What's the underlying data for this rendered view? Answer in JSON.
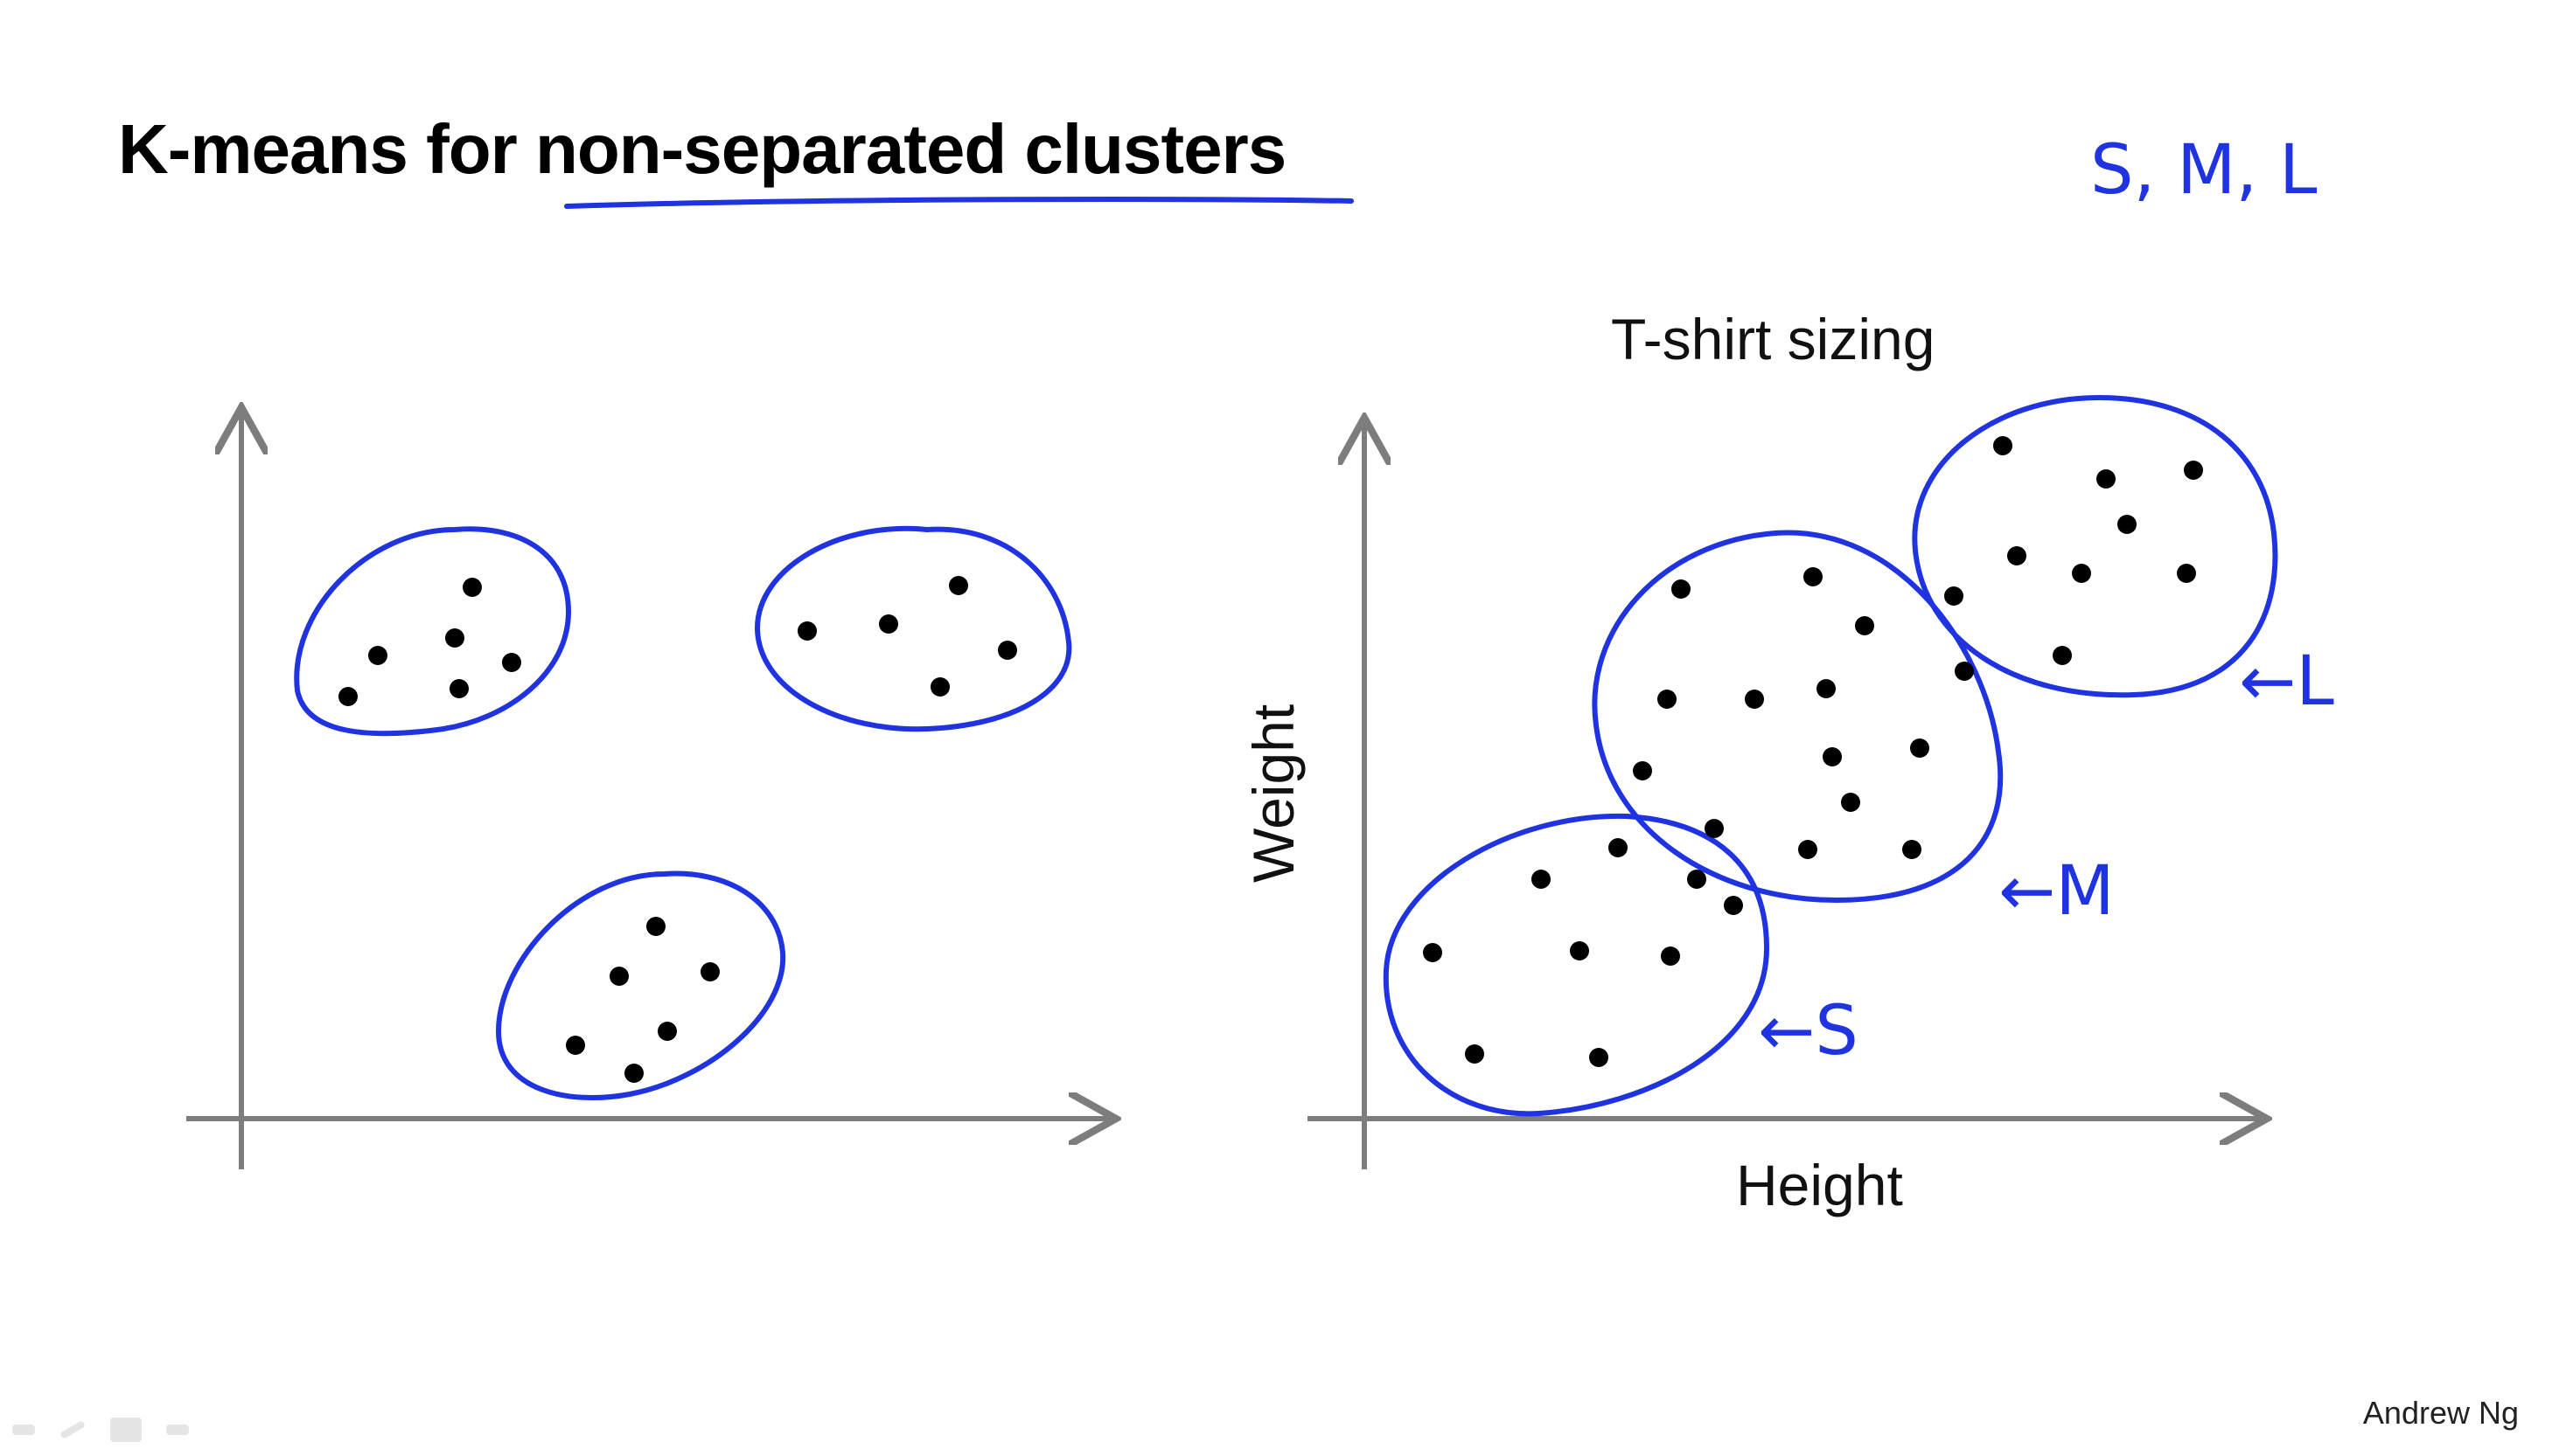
{
  "title": "K-means for non-separated clusters",
  "title_underlined_part": "non-separated clusters",
  "credit": "Andrew Ng",
  "colors": {
    "ink": "#1f33e0",
    "axis": "#7d7d7d",
    "point": "#000000"
  },
  "right_chart": {
    "title": "T-shirt sizing",
    "xlabel": "Height",
    "ylabel": "Weight"
  },
  "annotations": {
    "sizes": "S, M, L",
    "label_s": "←S",
    "label_m": "←M",
    "label_l": "←L"
  },
  "player_controls": [
    "back-icon",
    "pen-icon",
    "screen-icon",
    "forward-icon"
  ]
}
